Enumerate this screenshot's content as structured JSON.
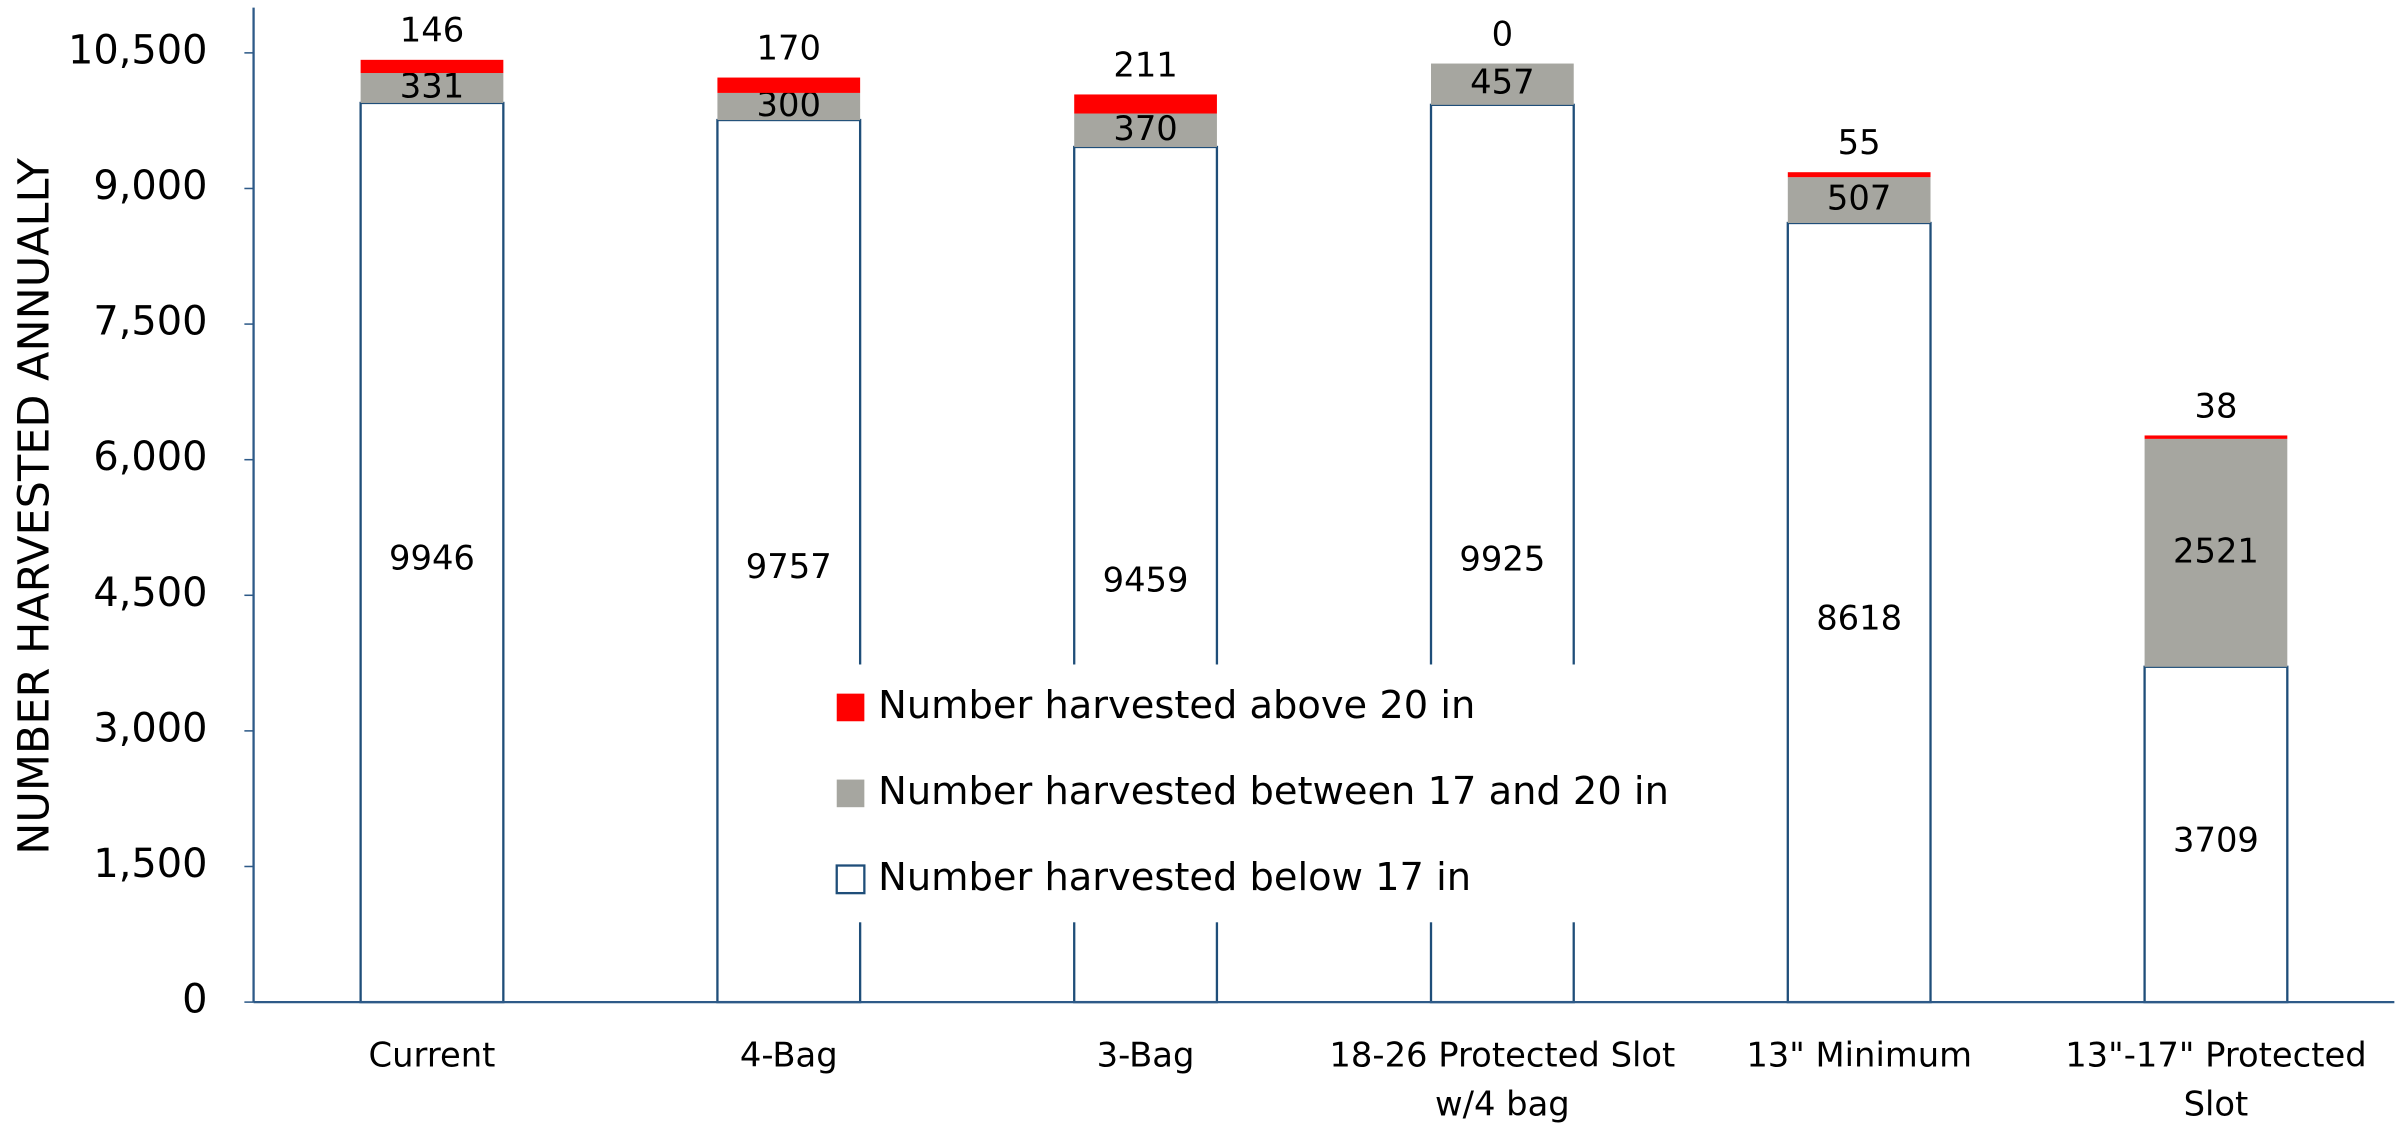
{
  "chart_data": {
    "type": "stacked_bar",
    "y_axis_label": "NUMBER HARVESTED ANNUALLY",
    "categories": [
      "Current",
      "4-Bag",
      "3-Bag",
      "18-26 Protected Slot w/4 bag",
      "13\" Minimum",
      "13\"-17\" Protected Slot"
    ],
    "series": [
      {
        "name": "Number harvested below 17 in",
        "color": "#ffffff",
        "stroke": "#1f4e79",
        "values": [
          9946,
          9757,
          9459,
          9925,
          8618,
          3709
        ]
      },
      {
        "name": "Number harvested between 17 and 20 in",
        "color": "#a6a6a0",
        "values": [
          331,
          300,
          370,
          457,
          507,
          2521
        ]
      },
      {
        "name": "Number harvested above 20 in",
        "color": "#ff0000",
        "values": [
          146,
          170,
          211,
          0,
          55,
          38
        ]
      }
    ],
    "ylim": [
      0,
      11000
    ],
    "yticks": [
      0,
      {
        "value": 1500,
        "label": "1,500"
      },
      {
        "value": 3000,
        "label": "3,000"
      },
      {
        "value": 4500,
        "label": "4,500"
      },
      {
        "value": 6000,
        "label": "6,000"
      },
      {
        "value": 7500,
        "label": "7,500"
      },
      {
        "value": 9000,
        "label": "9,000"
      },
      {
        "value": 10500,
        "label": "10,500"
      }
    ],
    "grid": false,
    "legend": "center"
  }
}
